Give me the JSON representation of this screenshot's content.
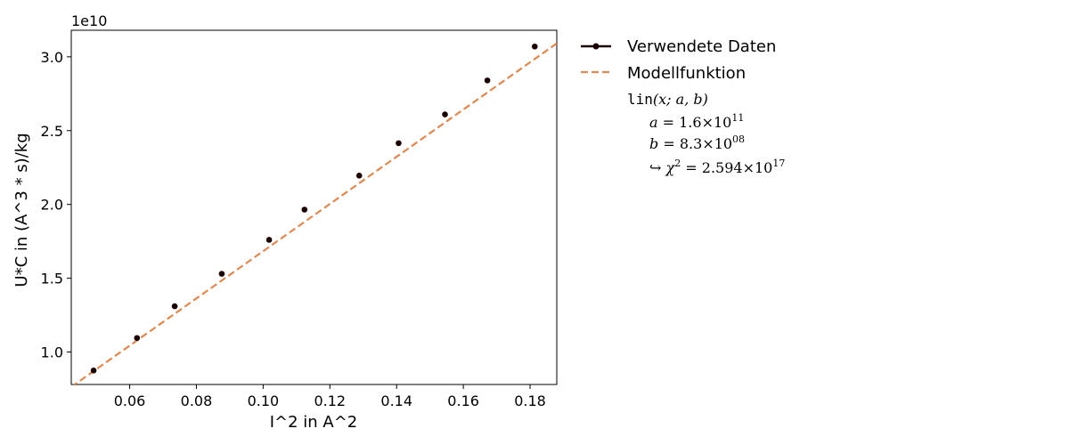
{
  "chart_data": {
    "type": "scatter",
    "xlabel": "I^2 in A^2",
    "ylabel": "U*C in (A^3 * s)/kg",
    "offset_text": "1e10",
    "xlim": [
      0.0425,
      0.188
    ],
    "ylim": [
      0.78,
      3.18
    ],
    "x_ticks": [
      0.06,
      0.08,
      0.1,
      0.12,
      0.14,
      0.16,
      0.18
    ],
    "x_tick_labels": [
      "0.06",
      "0.08",
      "0.10",
      "0.12",
      "0.14",
      "0.16",
      "0.18"
    ],
    "y_ticks": [
      1.0,
      1.5,
      2.0,
      2.5,
      3.0
    ],
    "y_tick_labels": [
      "1.0",
      "1.5",
      "2.0",
      "2.5",
      "3.0"
    ],
    "y_scale_note": "values in units of 1e10",
    "grid": false,
    "legend_position": "outside-right",
    "series": [
      {
        "name": "Verwendete Daten",
        "color": "#1a0000",
        "points": [
          {
            "x": 0.0492,
            "y": 0.875
          },
          {
            "x": 0.0622,
            "y": 1.095
          },
          {
            "x": 0.0735,
            "y": 1.31
          },
          {
            "x": 0.0876,
            "y": 1.53
          },
          {
            "x": 0.1018,
            "y": 1.76
          },
          {
            "x": 0.1124,
            "y": 1.965
          },
          {
            "x": 0.1288,
            "y": 2.195
          },
          {
            "x": 0.1406,
            "y": 2.415
          },
          {
            "x": 0.1545,
            "y": 2.61
          },
          {
            "x": 0.1672,
            "y": 2.84
          },
          {
            "x": 0.1814,
            "y": 3.07
          }
        ]
      },
      {
        "name": "Modellfunktion",
        "color": "#e08850",
        "style": "dashed",
        "model": {
          "a": 16.0,
          "b": 0.083
        }
      }
    ],
    "fit_annotation": {
      "func": "lin",
      "args": "(x; a, b)",
      "a_label": "a",
      "a_mantissa": "1.6",
      "a_exponent": "11",
      "b_label": "b",
      "b_mantissa": "8.3",
      "b_exponent": "08",
      "chi_mantissa": "2.594",
      "chi_exponent": "17"
    }
  }
}
